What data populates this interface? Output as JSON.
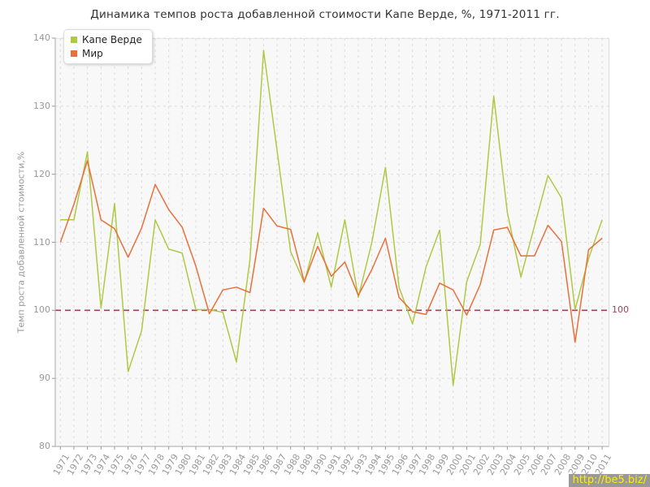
{
  "page": {
    "watermark": {
      "text": "http://be5.biz/",
      "bg_color": "#999999",
      "text_color": "#ffee00"
    }
  },
  "chart_data": {
    "type": "line",
    "title": "Динамика темпов роста добавленной стоимости Капе Верде, %, 1971-2011 гг.",
    "ylabel": "Темп роста добавленной стоимости,%",
    "xlabel": "",
    "ylim": [
      80,
      140
    ],
    "yticks": [
      80,
      90,
      100,
      110,
      120,
      130,
      140
    ],
    "grid": true,
    "legend_position": "top-left",
    "x": [
      1971,
      1972,
      1973,
      1974,
      1975,
      1976,
      1977,
      1978,
      1979,
      1980,
      1981,
      1982,
      1983,
      1984,
      1985,
      1986,
      1987,
      1988,
      1989,
      1990,
      1991,
      1992,
      1993,
      1994,
      1995,
      1996,
      1997,
      1998,
      1999,
      2000,
      2001,
      2002,
      2003,
      2004,
      2005,
      2006,
      2007,
      2008,
      2009,
      2010,
      2011
    ],
    "series": [
      {
        "name": "Капе Верде",
        "color": "#afc944",
        "values": [
          113.3,
          113.3,
          123.3,
          100.3,
          115.7,
          91.0,
          97.0,
          113.3,
          109.0,
          108.4,
          100.1,
          100.1,
          99.7,
          92.4,
          107.5,
          138.2,
          123.5,
          108.6,
          104.1,
          111.4,
          103.4,
          113.3,
          101.9,
          110.0,
          121.0,
          103.4,
          98.0,
          106.4,
          111.8,
          89.0,
          104.2,
          109.7,
          131.5,
          114.4,
          104.9,
          112.4,
          119.8,
          116.5,
          100.1,
          107.6,
          113.3
        ]
      },
      {
        "name": "Мир",
        "color": "#e8703a",
        "values": [
          110.0,
          115.6,
          122.0,
          113.3,
          112.0,
          107.8,
          112.1,
          118.5,
          114.8,
          112.2,
          106.5,
          99.5,
          103.0,
          103.4,
          102.6,
          115.0,
          112.4,
          111.9,
          104.2,
          109.4,
          105.0,
          107.1,
          102.2,
          106.0,
          110.6,
          101.9,
          99.8,
          99.4,
          104.0,
          103.0,
          99.3,
          103.8,
          111.8,
          112.2,
          108.0,
          108.0,
          112.5,
          110.1,
          95.3,
          108.9,
          110.6
        ]
      }
    ],
    "baseline": {
      "value": 100,
      "label": "100",
      "color": "#9a4455"
    }
  }
}
